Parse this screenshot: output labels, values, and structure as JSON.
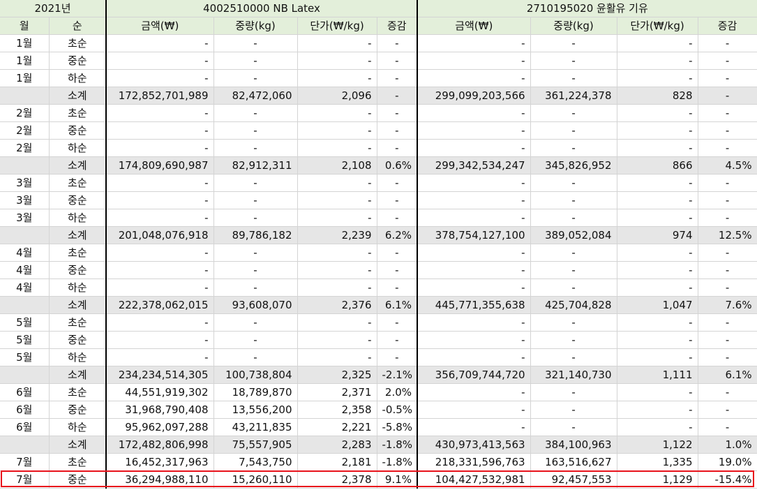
{
  "header": {
    "year": "2021년",
    "col_month": "월",
    "col_period": "순",
    "product1": "4002510000 NB Latex",
    "product2": "2710195020 윤활유 기유",
    "col_amount": "금액(₩)",
    "col_weight": "중량(kg)",
    "col_unit_price": "단가(₩/kg)",
    "col_change": "증감"
  },
  "rows": [
    {
      "type": "data",
      "month": "1월",
      "period": "초순",
      "a1": "-",
      "w1": "-",
      "u1": "-",
      "c1": "-",
      "a2": "-",
      "w2": "-",
      "u2": "-",
      "c2": "-"
    },
    {
      "type": "data",
      "month": "1월",
      "period": "중순",
      "a1": "-",
      "w1": "-",
      "u1": "-",
      "c1": "-",
      "a2": "-",
      "w2": "-",
      "u2": "-",
      "c2": "-"
    },
    {
      "type": "data",
      "month": "1월",
      "period": "하순",
      "a1": "-",
      "w1": "-",
      "u1": "-",
      "c1": "-",
      "a2": "-",
      "w2": "-",
      "u2": "-",
      "c2": "-"
    },
    {
      "type": "subtotal",
      "month": "",
      "period": "소계",
      "a1": "172,852,701,989",
      "w1": "82,472,060",
      "u1": "2,096",
      "c1": "-",
      "a2": "299,099,203,566",
      "w2": "361,224,378",
      "u2": "828",
      "c2": "-"
    },
    {
      "type": "data",
      "month": "2월",
      "period": "초순",
      "a1": "-",
      "w1": "-",
      "u1": "-",
      "c1": "-",
      "a2": "-",
      "w2": "-",
      "u2": "-",
      "c2": "-"
    },
    {
      "type": "data",
      "month": "2월",
      "period": "중순",
      "a1": "-",
      "w1": "-",
      "u1": "-",
      "c1": "-",
      "a2": "-",
      "w2": "-",
      "u2": "-",
      "c2": "-"
    },
    {
      "type": "data",
      "month": "2월",
      "period": "하순",
      "a1": "-",
      "w1": "-",
      "u1": "-",
      "c1": "-",
      "a2": "-",
      "w2": "-",
      "u2": "-",
      "c2": "-"
    },
    {
      "type": "subtotal",
      "month": "",
      "period": "소계",
      "a1": "174,809,690,987",
      "w1": "82,912,311",
      "u1": "2,108",
      "c1": "0.6%",
      "a2": "299,342,534,247",
      "w2": "345,826,952",
      "u2": "866",
      "c2": "4.5%"
    },
    {
      "type": "data",
      "month": "3월",
      "period": "초순",
      "a1": "-",
      "w1": "-",
      "u1": "-",
      "c1": "-",
      "a2": "-",
      "w2": "-",
      "u2": "-",
      "c2": "-"
    },
    {
      "type": "data",
      "month": "3월",
      "period": "중순",
      "a1": "-",
      "w1": "-",
      "u1": "-",
      "c1": "-",
      "a2": "-",
      "w2": "-",
      "u2": "-",
      "c2": "-"
    },
    {
      "type": "data",
      "month": "3월",
      "period": "하순",
      "a1": "-",
      "w1": "-",
      "u1": "-",
      "c1": "-",
      "a2": "-",
      "w2": "-",
      "u2": "-",
      "c2": "-"
    },
    {
      "type": "subtotal",
      "month": "",
      "period": "소계",
      "a1": "201,048,076,918",
      "w1": "89,786,182",
      "u1": "2,239",
      "c1": "6.2%",
      "a2": "378,754,127,100",
      "w2": "389,052,084",
      "u2": "974",
      "c2": "12.5%"
    },
    {
      "type": "data",
      "month": "4월",
      "period": "초순",
      "a1": "-",
      "w1": "-",
      "u1": "-",
      "c1": "-",
      "a2": "-",
      "w2": "-",
      "u2": "-",
      "c2": "-"
    },
    {
      "type": "data",
      "month": "4월",
      "period": "중순",
      "a1": "-",
      "w1": "-",
      "u1": "-",
      "c1": "-",
      "a2": "-",
      "w2": "-",
      "u2": "-",
      "c2": "-"
    },
    {
      "type": "data",
      "month": "4월",
      "period": "하순",
      "a1": "-",
      "w1": "-",
      "u1": "-",
      "c1": "-",
      "a2": "-",
      "w2": "-",
      "u2": "-",
      "c2": "-"
    },
    {
      "type": "subtotal",
      "month": "",
      "period": "소계",
      "a1": "222,378,062,015",
      "w1": "93,608,070",
      "u1": "2,376",
      "c1": "6.1%",
      "a2": "445,771,355,638",
      "w2": "425,704,828",
      "u2": "1,047",
      "c2": "7.6%"
    },
    {
      "type": "data",
      "month": "5월",
      "period": "초순",
      "a1": "-",
      "w1": "-",
      "u1": "-",
      "c1": "-",
      "a2": "-",
      "w2": "-",
      "u2": "-",
      "c2": "-"
    },
    {
      "type": "data",
      "month": "5월",
      "period": "중순",
      "a1": "-",
      "w1": "-",
      "u1": "-",
      "c1": "-",
      "a2": "-",
      "w2": "-",
      "u2": "-",
      "c2": "-"
    },
    {
      "type": "data",
      "month": "5월",
      "period": "하순",
      "a1": "-",
      "w1": "-",
      "u1": "-",
      "c1": "-",
      "a2": "-",
      "w2": "-",
      "u2": "-",
      "c2": "-"
    },
    {
      "type": "subtotal",
      "month": "",
      "period": "소계",
      "a1": "234,234,514,305",
      "w1": "100,738,804",
      "u1": "2,325",
      "c1": "-2.1%",
      "a2": "356,709,744,720",
      "w2": "321,140,730",
      "u2": "1,111",
      "c2": "6.1%"
    },
    {
      "type": "data",
      "month": "6월",
      "period": "초순",
      "a1": "44,551,919,302",
      "w1": "18,789,870",
      "u1": "2,371",
      "c1": "2.0%",
      "a2": "-",
      "w2": "-",
      "u2": "-",
      "c2": "-"
    },
    {
      "type": "data",
      "month": "6월",
      "period": "중순",
      "a1": "31,968,790,408",
      "w1": "13,556,200",
      "u1": "2,358",
      "c1": "-0.5%",
      "a2": "-",
      "w2": "-",
      "u2": "-",
      "c2": "-"
    },
    {
      "type": "data",
      "month": "6월",
      "period": "하순",
      "a1": "95,962,097,288",
      "w1": "43,211,835",
      "u1": "2,221",
      "c1": "-5.8%",
      "a2": "-",
      "w2": "-",
      "u2": "-",
      "c2": "-"
    },
    {
      "type": "subtotal",
      "month": "",
      "period": "소계",
      "a1": "172,482,806,998",
      "w1": "75,557,905",
      "u1": "2,283",
      "c1": "-1.8%",
      "a2": "430,973,413,563",
      "w2": "384,100,963",
      "u2": "1,122",
      "c2": "1.0%"
    },
    {
      "type": "data",
      "month": "7월",
      "period": "초순",
      "a1": "16,452,317,963",
      "w1": "7,543,750",
      "u1": "2,181",
      "c1": "-1.8%",
      "a2": "218,331,596,763",
      "w2": "163,516,627",
      "u2": "1,335",
      "c2": "19.0%"
    },
    {
      "type": "selected",
      "month": "7월",
      "period": "중순",
      "a1": "36,294,988,110",
      "w1": "15,260,110",
      "u1": "2,378",
      "c1": "9.1%",
      "a2": "104,427,532,981",
      "w2": "92,457,553",
      "u2": "1,129",
      "c2": "-15.4%"
    }
  ]
}
